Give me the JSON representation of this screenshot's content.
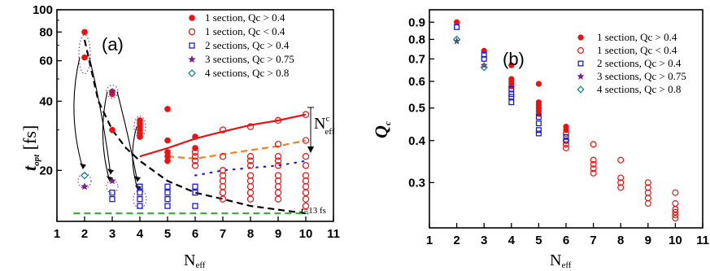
{
  "colors": {
    "red": "#ee1111",
    "blue": "#1a1adf",
    "purple": "#7b1f8c",
    "teal": "#1a8a8a",
    "green": "#22aa22",
    "orange": "#f08020",
    "dots": "#1a1adf",
    "dashgreen": "#33aa33"
  },
  "panel_a": {
    "label": "(a)",
    "ylabel_main": "t",
    "ylabel_sub": "opt",
    "ylabel_unit": " [fs]",
    "xlabel_main": "N",
    "xlabel_sub": "eff",
    "ytick_labels": [
      "20",
      "40",
      "60",
      "80",
      "100"
    ],
    "xtick_labels": [
      "1",
      "2",
      "3",
      "4",
      "5",
      "6",
      "7",
      "8",
      "9",
      "10",
      "11"
    ],
    "annotation_neff": "N",
    "annotation_neff_sup": "c",
    "annotation_neff_sub": "eff",
    "annotation_t13": "t",
    "annotation_t13_rest": "=13 fs",
    "legend": [
      {
        "label": "1 section, Qc > 0.4",
        "marker": "filled-circle"
      },
      {
        "label": "1 section, Qc < 0.4",
        "marker": "open-circle"
      },
      {
        "label": "2 sections, Qc > 0.4",
        "marker": "open-square"
      },
      {
        "label": "3 sections, Qc > 0.75",
        "marker": "star"
      },
      {
        "label": "4 sections, Qc > 0.8",
        "marker": "open-diamond"
      }
    ]
  },
  "panel_b": {
    "label": "(b)",
    "ylabel_main": "Q",
    "ylabel_sub": "c",
    "xlabel_main": "N",
    "xlabel_sub": "eff",
    "ytick_labels": [
      "0.3",
      "0.4",
      "0.5",
      "0.6",
      "0.7",
      "0.8",
      "0.9"
    ],
    "xtick_labels": [
      "1",
      "2",
      "3",
      "4",
      "5",
      "6",
      "7",
      "8",
      "9",
      "10",
      "11"
    ],
    "legend": [
      {
        "label": "1 section,  Qc > 0.4",
        "marker": "filled-circle"
      },
      {
        "label": "1 section,  Qc < 0.4",
        "marker": "open-circle"
      },
      {
        "label": "2 sections, Qc > 0.4",
        "marker": "open-square"
      },
      {
        "label": "3 sections, Qc > 0.75",
        "marker": "star"
      },
      {
        "label": "4 sections, Qc > 0.8",
        "marker": "open-diamond"
      }
    ]
  },
  "chart_data": [
    {
      "type": "scatter",
      "yscale": "log",
      "xlim": [
        1,
        11
      ],
      "ylim": [
        12,
        100
      ],
      "yticks": [
        20,
        40,
        60,
        80,
        100
      ],
      "xlabel": "Neff",
      "ylabel": "t_opt [fs]",
      "series": [
        {
          "name": "1 section, Qc > 0.4",
          "marker": "filled-circle",
          "points": [
            [
              2,
              80
            ],
            [
              2,
              62
            ],
            [
              3,
              44
            ],
            [
              3,
              43
            ],
            [
              3,
              30
            ],
            [
              4,
              33
            ],
            [
              4,
              32
            ],
            [
              4,
              31
            ],
            [
              4,
              30
            ],
            [
              4,
              29
            ],
            [
              4,
              28
            ],
            [
              5,
              37
            ],
            [
              5,
              27
            ],
            [
              5,
              24
            ],
            [
              5,
              23
            ],
            [
              5,
              22
            ],
            [
              6,
              28
            ],
            [
              6,
              25
            ]
          ]
        },
        {
          "name": "1 section, Qc < 0.4",
          "marker": "open-circle",
          "points": [
            [
              6,
              24
            ],
            [
              6,
              23
            ],
            [
              6,
              22
            ],
            [
              6,
              21
            ],
            [
              7,
              30
            ],
            [
              7,
              23
            ],
            [
              7,
              20
            ],
            [
              7,
              19
            ],
            [
              7,
              18
            ],
            [
              7,
              17
            ],
            [
              7,
              16
            ],
            [
              7,
              15
            ],
            [
              8,
              31
            ],
            [
              8,
              23
            ],
            [
              8,
              22
            ],
            [
              8,
              21
            ],
            [
              8,
              19
            ],
            [
              8,
              18
            ],
            [
              8,
              17
            ],
            [
              8,
              16
            ],
            [
              8,
              15
            ],
            [
              9,
              33
            ],
            [
              9,
              26
            ],
            [
              9,
              23
            ],
            [
              9,
              22
            ],
            [
              9,
              21
            ],
            [
              9,
              19
            ],
            [
              9,
              18
            ],
            [
              9,
              17
            ],
            [
              9,
              16
            ],
            [
              9,
              15
            ],
            [
              10,
              35
            ],
            [
              10,
              27
            ],
            [
              10,
              23
            ],
            [
              10,
              21
            ],
            [
              10,
              19
            ],
            [
              10,
              18
            ],
            [
              10,
              17
            ],
            [
              10,
              16
            ],
            [
              10,
              15
            ],
            [
              10,
              14
            ]
          ]
        },
        {
          "name": "2 sections, Qc > 0.4",
          "marker": "open-square",
          "points": [
            [
              3,
              16
            ],
            [
              3,
              15
            ],
            [
              4,
              17
            ],
            [
              4,
              16
            ],
            [
              4,
              15
            ],
            [
              4,
              14
            ],
            [
              5,
              17
            ],
            [
              5,
              16
            ],
            [
              5,
              15
            ],
            [
              5,
              14
            ],
            [
              6,
              17
            ],
            [
              6,
              16
            ],
            [
              6,
              14
            ]
          ]
        },
        {
          "name": "3 sections, Qc > 0.75",
          "marker": "star",
          "points": [
            [
              2,
              17
            ],
            [
              3,
              18
            ],
            [
              3,
              44
            ]
          ]
        },
        {
          "name": "4 sections, Qc > 0.8",
          "marker": "open-diamond",
          "points": [
            [
              2,
              19
            ]
          ]
        }
      ],
      "lines": [
        {
          "style": "solid-red",
          "points": [
            [
              4,
              23
            ],
            [
              5,
              25
            ],
            [
              6,
              27.5
            ],
            [
              7,
              29.5
            ],
            [
              8,
              31.5
            ],
            [
              9,
              33
            ],
            [
              10,
              35
            ]
          ]
        },
        {
          "style": "dash-orange",
          "points": [
            [
              5,
              23
            ],
            [
              6,
              22.5
            ],
            [
              7,
              23.5
            ],
            [
              8,
              24.5
            ],
            [
              9,
              25.5
            ],
            [
              10,
              27
            ]
          ]
        },
        {
          "style": "dot-blue",
          "points": [
            [
              6,
              19
            ],
            [
              7,
              20
            ],
            [
              8,
              20.5
            ],
            [
              9,
              21
            ],
            [
              10,
              22
            ]
          ]
        },
        {
          "style": "dash-black",
          "points": [
            [
              2,
              74
            ],
            [
              2.5,
              40
            ],
            [
              3,
              30
            ],
            [
              3.5,
              25
            ],
            [
              4,
              22
            ],
            [
              5,
              18
            ],
            [
              6,
              16
            ],
            [
              7,
              15
            ],
            [
              8,
              14
            ],
            [
              9,
              13.5
            ],
            [
              10,
              13
            ]
          ]
        },
        {
          "style": "dash-green",
          "points": [
            [
              1.6,
              13
            ],
            [
              10.1,
              13
            ]
          ]
        }
      ]
    },
    {
      "type": "scatter",
      "yscale": "log",
      "xlim": [
        1,
        11
      ],
      "ylim": [
        0.22,
        0.98
      ],
      "yticks": [
        0.3,
        0.4,
        0.5,
        0.6,
        0.7,
        0.8,
        0.9
      ],
      "xlabel": "Neff",
      "ylabel": "Qc",
      "series": [
        {
          "name": "1 section,  Qc > 0.4",
          "marker": "filled-circle",
          "points": [
            [
              2,
              0.9
            ],
            [
              3,
              0.74
            ],
            [
              4,
              0.67
            ],
            [
              4,
              0.61
            ],
            [
              4,
              0.6
            ],
            [
              4,
              0.59
            ],
            [
              4,
              0.58
            ],
            [
              5,
              0.59
            ],
            [
              5,
              0.52
            ],
            [
              5,
              0.51
            ],
            [
              5,
              0.5
            ],
            [
              5,
              0.49
            ],
            [
              5,
              0.48
            ],
            [
              6,
              0.44
            ],
            [
              6,
              0.43
            ]
          ]
        },
        {
          "name": "1 section,  Qc < 0.4",
          "marker": "open-circle",
          "points": [
            [
              6,
              0.42
            ],
            [
              6,
              0.4
            ],
            [
              6,
              0.39
            ],
            [
              6,
              0.38
            ],
            [
              7,
              0.39
            ],
            [
              7,
              0.35
            ],
            [
              7,
              0.34
            ],
            [
              7,
              0.33
            ],
            [
              7,
              0.32
            ],
            [
              8,
              0.35
            ],
            [
              8,
              0.31
            ],
            [
              8,
              0.3
            ],
            [
              8,
              0.29
            ],
            [
              9,
              0.3
            ],
            [
              9,
              0.29
            ],
            [
              9,
              0.28
            ],
            [
              9,
              0.27
            ],
            [
              9,
              0.26
            ],
            [
              10,
              0.28
            ],
            [
              10,
              0.26
            ],
            [
              10,
              0.25
            ],
            [
              10,
              0.245
            ],
            [
              10,
              0.24
            ],
            [
              10,
              0.235
            ]
          ]
        },
        {
          "name": "2 sections, Qc > 0.4",
          "marker": "open-square",
          "points": [
            [
              2,
              0.87
            ],
            [
              3,
              0.72
            ],
            [
              3,
              0.7
            ],
            [
              4,
              0.57
            ],
            [
              4,
              0.55
            ],
            [
              4,
              0.54
            ],
            [
              4,
              0.52
            ],
            [
              5,
              0.47
            ],
            [
              5,
              0.45
            ],
            [
              5,
              0.43
            ],
            [
              5,
              0.42
            ],
            [
              6,
              0.41
            ],
            [
              6,
              0.4
            ]
          ]
        },
        {
          "name": "3 sections, Qc > 0.75",
          "marker": "star",
          "points": [
            [
              2,
              0.79
            ],
            [
              3,
              0.67
            ]
          ]
        },
        {
          "name": "4 sections, Qc > 0.8",
          "marker": "open-diamond",
          "points": [
            [
              2,
              0.8
            ],
            [
              3,
              0.66
            ]
          ]
        }
      ]
    }
  ]
}
